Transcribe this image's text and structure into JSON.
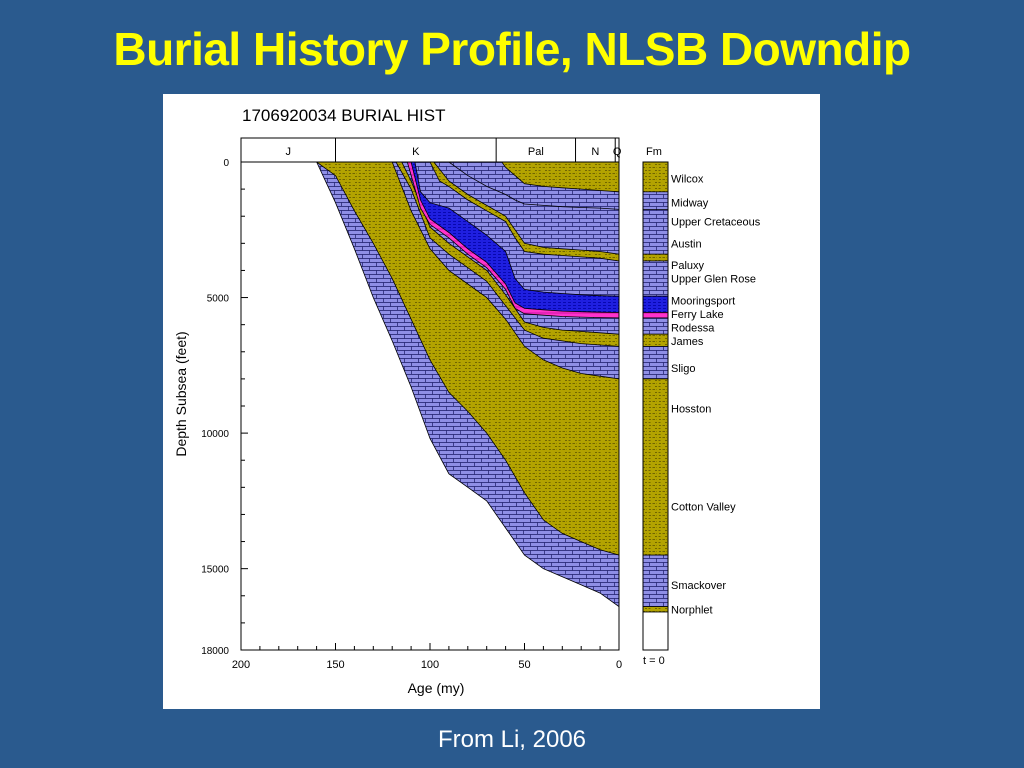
{
  "slide": {
    "title": "Burial History Profile, NLSB Downdip",
    "caption": "From Li, 2006"
  },
  "colors": {
    "background": "#2a5a8e",
    "title": "#ffff00",
    "shale": "#8f8fe6",
    "sand": "#b3a300",
    "carbonate": "#1f1fe0",
    "anhydrite": "#ff33cc"
  },
  "chart_data": {
    "type": "area",
    "title": "1706920034 BURIAL HIST",
    "xlabel": "Age (my)",
    "ylabel": "Depth Subsea (feet)",
    "xlim": [
      200,
      0
    ],
    "ylim": [
      0,
      18000
    ],
    "x_ticks": [
      200,
      150,
      100,
      50,
      0
    ],
    "y_ticks": [
      0,
      5000,
      10000,
      15000,
      18000
    ],
    "periods": [
      {
        "label": "J",
        "from": 200,
        "to": 150
      },
      {
        "label": "K",
        "from": 150,
        "to": 65
      },
      {
        "label": "Pal",
        "from": 65,
        "to": 23
      },
      {
        "label": "N",
        "from": 23,
        "to": 2
      },
      {
        "label": "Q",
        "from": 2,
        "to": 0
      }
    ],
    "column_header": "Fm",
    "time_label": "t = 0",
    "formations": [
      {
        "name": "Wilcox",
        "depth": 600
      },
      {
        "name": "Midway",
        "depth": 1500
      },
      {
        "name": "Upper Cretaceous",
        "depth": 2200
      },
      {
        "name": "Austin",
        "depth": 3000
      },
      {
        "name": "Paluxy",
        "depth": 3800
      },
      {
        "name": "Upper Glen Rose",
        "depth": 4300
      },
      {
        "name": "Mooringsport",
        "depth": 5100
      },
      {
        "name": "Ferry Lake",
        "depth": 5600
      },
      {
        "name": "Rodessa",
        "depth": 6100
      },
      {
        "name": "James",
        "depth": 6600
      },
      {
        "name": "Sligo",
        "depth": 7600
      },
      {
        "name": "Hosston",
        "depth": 9100
      },
      {
        "name": "Cotton Valley",
        "depth": 12700
      },
      {
        "name": "Smackover",
        "depth": 15600
      },
      {
        "name": "Norphlet",
        "depth": 16500
      }
    ],
    "column_bands": [
      {
        "from": 0,
        "to": 1100,
        "fill": "sand"
      },
      {
        "from": 1100,
        "to": 1750,
        "fill": "shale"
      },
      {
        "from": 1750,
        "to": 3400,
        "fill": "shale"
      },
      {
        "from": 3400,
        "to": 3650,
        "fill": "sand"
      },
      {
        "from": 3650,
        "to": 4950,
        "fill": "shale"
      },
      {
        "from": 4950,
        "to": 5550,
        "fill": "carbonate"
      },
      {
        "from": 5550,
        "to": 5750,
        "fill": "anhydrite"
      },
      {
        "from": 5750,
        "to": 6350,
        "fill": "shale"
      },
      {
        "from": 6350,
        "to": 6800,
        "fill": "sand"
      },
      {
        "from": 6800,
        "to": 8000,
        "fill": "shale"
      },
      {
        "from": 8000,
        "to": 14500,
        "fill": "sand"
      },
      {
        "from": 14500,
        "to": 16400,
        "fill": "shale"
      },
      {
        "from": 16400,
        "to": 16600,
        "fill": "sand"
      },
      {
        "from": 16600,
        "to": 18000,
        "fill": "none"
      }
    ],
    "series": [
      {
        "fill": "sand",
        "x": [
          160,
          150,
          140,
          130,
          120,
          110,
          100,
          90,
          80,
          70,
          60,
          50,
          40,
          30,
          20,
          10,
          0
        ],
        "y": [
          0,
          0,
          0,
          0,
          0,
          0,
          0,
          0,
          0,
          0,
          0,
          0,
          0,
          0,
          0,
          0,
          0
        ]
      },
      {
        "fill": "shale",
        "x": [
          160,
          150,
          140,
          130,
          120,
          110,
          100,
          90,
          80,
          70,
          60,
          50,
          40,
          30,
          20,
          10,
          0
        ],
        "y": [
          0,
          1500,
          3200,
          5000,
          6600,
          8300,
          10200,
          11500,
          12000,
          12500,
          13500,
          14500,
          15000,
          15300,
          15600,
          15900,
          16400
        ]
      },
      {
        "fill": "sand",
        "x": [
          160,
          150,
          140,
          130,
          120,
          110,
          100,
          90,
          80,
          70,
          60,
          50,
          40,
          30,
          20,
          10,
          0
        ],
        "y": [
          0,
          500,
          1800,
          3000,
          4300,
          5800,
          7300,
          8500,
          9200,
          10000,
          11000,
          12200,
          13200,
          13700,
          14000,
          14300,
          14500
        ]
      },
      {
        "fill": "shale",
        "x": [
          120,
          110,
          100,
          90,
          80,
          70,
          60,
          50,
          40,
          30,
          20,
          10,
          0
        ],
        "y": [
          0,
          1800,
          3200,
          4000,
          4500,
          5000,
          5800,
          6800,
          7300,
          7600,
          7800,
          7900,
          8000
        ]
      },
      {
        "fill": "sand",
        "x": [
          118,
          110,
          100,
          90,
          80,
          70,
          60,
          50,
          40,
          30,
          20,
          10,
          0
        ],
        "y": [
          0,
          1000,
          2800,
          3400,
          3900,
          4400,
          5300,
          6200,
          6500,
          6600,
          6700,
          6750,
          6800
        ]
      },
      {
        "fill": "shale",
        "x": [
          115,
          110,
          100,
          90,
          80,
          70,
          60,
          50,
          40,
          30,
          20,
          10,
          0
        ],
        "y": [
          0,
          700,
          2400,
          3000,
          3500,
          4000,
          4900,
          5900,
          6100,
          6200,
          6250,
          6300,
          6350
        ]
      },
      {
        "fill": "anhydrite",
        "x": [
          112,
          105,
          100,
          90,
          80,
          70,
          60,
          55,
          50,
          40,
          30,
          20,
          10,
          0
        ],
        "y": [
          0,
          1700,
          2300,
          2800,
          3400,
          3900,
          4700,
          5400,
          5600,
          5650,
          5700,
          5720,
          5740,
          5750
        ]
      },
      {
        "fill": "carbonate",
        "x": [
          110,
          105,
          100,
          90,
          80,
          70,
          60,
          55,
          50,
          40,
          30,
          20,
          10,
          0
        ],
        "y": [
          0,
          1400,
          2100,
          2600,
          3200,
          3700,
          4500,
          5200,
          5400,
          5450,
          5500,
          5520,
          5540,
          5550
        ]
      },
      {
        "fill": "shale",
        "x": [
          108,
          105,
          100,
          90,
          80,
          70,
          60,
          55,
          50,
          40,
          30,
          20,
          10,
          0
        ],
        "y": [
          0,
          1100,
          1500,
          1700,
          2200,
          2700,
          3300,
          4300,
          4700,
          4800,
          4850,
          4900,
          4930,
          4950
        ]
      },
      {
        "fill": "sand",
        "x": [
          100,
          95,
          90,
          80,
          70,
          60,
          55,
          50,
          40,
          30,
          20,
          10,
          0
        ],
        "y": [
          0,
          700,
          900,
          1400,
          1800,
          2200,
          2800,
          3300,
          3400,
          3450,
          3500,
          3550,
          3650
        ]
      },
      {
        "fill": "shale",
        "x": [
          98,
          90,
          80,
          70,
          60,
          55,
          50,
          40,
          30,
          20,
          10,
          0
        ],
        "y": [
          0,
          700,
          1200,
          1600,
          2000,
          2500,
          3000,
          3150,
          3200,
          3250,
          3300,
          3400
        ]
      },
      {
        "fill": "shale",
        "x": [
          90,
          80,
          70,
          60,
          55,
          50,
          40,
          30,
          20,
          10,
          0
        ],
        "y": [
          0,
          500,
          900,
          1200,
          1400,
          1550,
          1600,
          1650,
          1680,
          1700,
          1750
        ]
      },
      {
        "fill": "sand",
        "x": [
          62,
          60,
          55,
          50,
          40,
          30,
          20,
          10,
          0
        ],
        "y": [
          0,
          200,
          500,
          800,
          900,
          950,
          1000,
          1050,
          1100
        ]
      }
    ]
  }
}
